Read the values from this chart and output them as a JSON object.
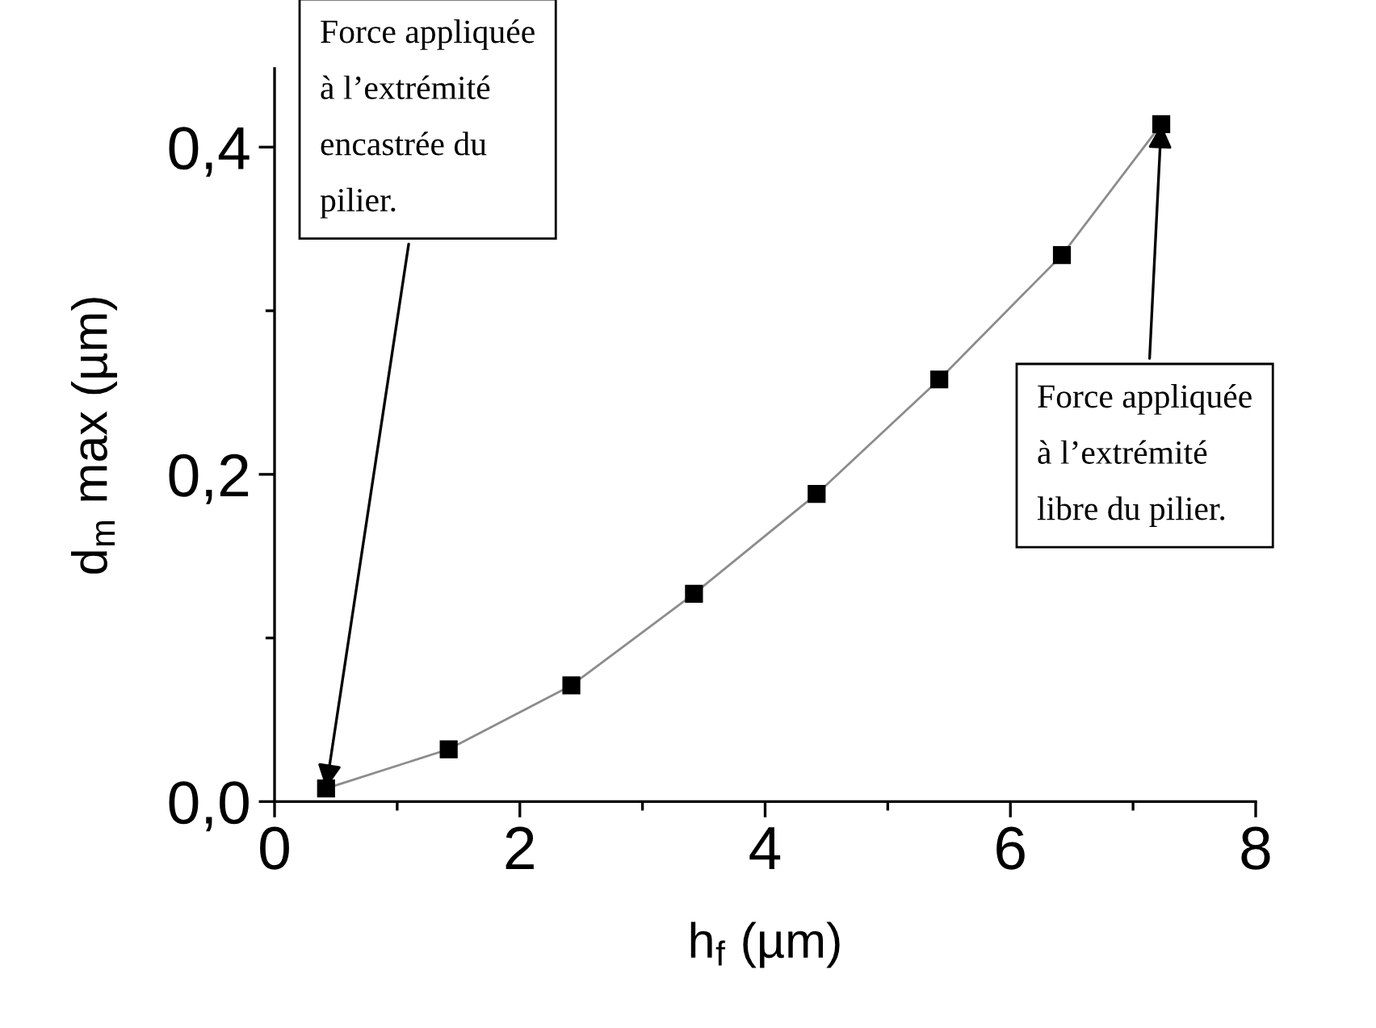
{
  "chart_data": {
    "type": "line",
    "xlabel": "h$_{f}$ (µm)",
    "ylabel": "d$_{m}$ max (µm)",
    "x": [
      0.42,
      1.42,
      2.42,
      3.42,
      4.42,
      5.42,
      6.42,
      7.23
    ],
    "series": [
      {
        "color": "#000000",
        "values": [
          0.008,
          0.032,
          0.071,
          0.127,
          0.188,
          0.258,
          0.334,
          0.414
        ]
      }
    ],
    "marker": "square",
    "line_style": "solid",
    "grid": false,
    "legend": false,
    "xlim": [
      0,
      8
    ],
    "ylim": [
      0,
      0.448
    ],
    "xticks": [
      {
        "value": 0,
        "label": "0"
      },
      {
        "value": 1,
        "label": null
      },
      {
        "value": 2,
        "label": "2"
      },
      {
        "value": 3,
        "label": null
      },
      {
        "value": 4,
        "label": "4"
      },
      {
        "value": 5,
        "label": null
      },
      {
        "value": 6,
        "label": "6"
      },
      {
        "value": 7,
        "label": null
      },
      {
        "value": 8,
        "label": "8"
      }
    ],
    "yticks": [
      {
        "value": 0,
        "label": "0,0"
      },
      {
        "value": 0.1,
        "label": null
      },
      {
        "value": 0.2,
        "label": "0,2"
      },
      {
        "value": 0.3,
        "label": null
      },
      {
        "value": 0.4,
        "label": "0,4"
      }
    ],
    "annotations": [
      {
        "text": "Force appliquée\nà l’extrémité\nencastrée du\npilier.",
        "x": 0.42,
        "y": 0.008
      },
      {
        "text": "Force appliquée\nà l’extrémité\nlibre du pilier.",
        "x": 7.23,
        "y": 0.414
      }
    ]
  }
}
